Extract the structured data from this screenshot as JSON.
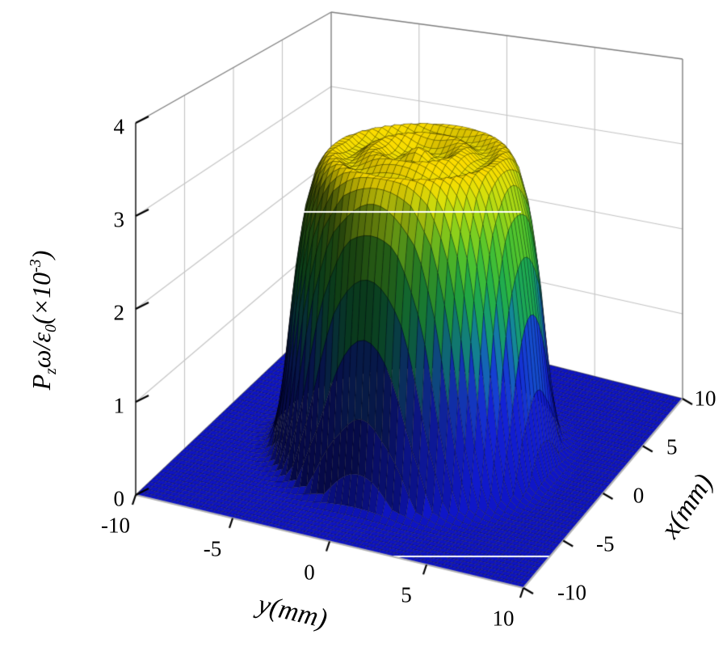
{
  "chart_data": {
    "type": "surface",
    "description": "3D wireframe-mesh surface plot of a flat-top (super-Gaussian) beam profile on a white background, jet-like colormap: deep blue base, green slopes, yellow-orange plateau",
    "x_axis": {
      "label": "x(mm)",
      "min": -10,
      "max": 10,
      "tick_values": [
        -10,
        -5,
        0,
        5,
        10
      ],
      "tick_labels": [
        "-10",
        "-5",
        "0",
        "5",
        "10"
      ]
    },
    "y_axis": {
      "label": "y(mm)",
      "min": -10,
      "max": 10,
      "tick_values": [
        -10,
        -5,
        0,
        5,
        10
      ],
      "tick_labels": [
        "-10",
        "-5",
        "0",
        "5",
        "10"
      ]
    },
    "z_axis": {
      "label_plain": "P_z ω/ε_0 (×10-3)",
      "label_parts": {
        "symbol": "P",
        "symbol_sub": "z",
        "ratio": "ω/ε",
        "ratio_sub": "0",
        "scale_open": "(×10",
        "scale_exp": "-3",
        "scale_close": ")"
      },
      "min": 0,
      "max": 4,
      "tick_values": [
        0,
        1,
        2,
        3,
        4
      ],
      "tick_labels": [
        "0",
        "1",
        "2",
        "3",
        "4"
      ]
    },
    "wall_grid": {
      "x_lines": [
        -5,
        0,
        5
      ],
      "y_lines": [
        -5,
        0,
        5
      ],
      "z_lines": [
        1,
        2,
        3
      ]
    },
    "surface": {
      "shape": "flat-top super-Gaussian, circularly symmetric, centered at x=0 y=0",
      "peak_value": 3.3,
      "plateau_radius_mm": 5,
      "radial_profile": {
        "r_mm": [
          0,
          1,
          2,
          3,
          4,
          4.5,
          5,
          5.5,
          6,
          6.5,
          7,
          7.5,
          8,
          9,
          10,
          12,
          14.3
        ],
        "value": [
          3.3,
          3.3,
          3.3,
          3.3,
          3.29,
          3.22,
          3.1,
          2.71,
          1.89,
          0.77,
          0.1,
          0.02,
          0,
          0,
          0,
          0,
          0
        ]
      },
      "ripple": {
        "amplitude": 0.07,
        "radial_frequency": 2.86
      },
      "mesh_divisions": 56
    },
    "color_stops": [
      {
        "z": 0.0,
        "c": "#0e14c2"
      },
      {
        "z": 0.9,
        "c": "#1322d2"
      },
      {
        "z": 1.3,
        "c": "#1547cc"
      },
      {
        "z": 1.6,
        "c": "#13839a"
      },
      {
        "z": 1.9,
        "c": "#17a05c"
      },
      {
        "z": 2.2,
        "c": "#27b140"
      },
      {
        "z": 2.55,
        "c": "#52c22c"
      },
      {
        "z": 2.9,
        "c": "#9ed216"
      },
      {
        "z": 3.15,
        "c": "#d8dc0a"
      },
      {
        "z": 3.3,
        "c": "#f6d800"
      }
    ]
  }
}
